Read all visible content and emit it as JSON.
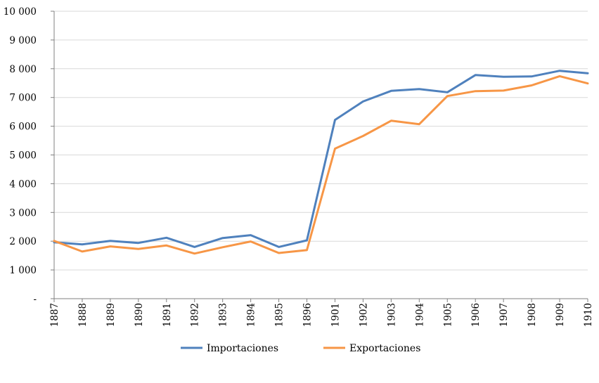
{
  "chart_data": {
    "type": "line",
    "title": "",
    "xlabel": "",
    "ylabel": "",
    "categories": [
      "1887",
      "1888",
      "1889",
      "1890",
      "1891",
      "1892",
      "1893",
      "1894",
      "1895",
      "1896",
      "1901",
      "1902",
      "1903",
      "1904",
      "1905",
      "1906",
      "1907",
      "1908",
      "1909",
      "1910"
    ],
    "ylim": [
      0,
      10000
    ],
    "y_ticks": [
      0,
      1000,
      2000,
      3000,
      4000,
      5000,
      6000,
      7000,
      8000,
      9000,
      10000
    ],
    "y_tick_labels": [
      "-",
      "1 000",
      "2 000",
      "3 000",
      "4 000",
      "5 000",
      "6 000",
      "7 000",
      "8 000",
      "9 000",
      "10 000"
    ],
    "grid": true,
    "legend_position": "bottom",
    "series": [
      {
        "name": "Importaciones",
        "color": "#4F81BD",
        "values": [
          1960,
          1890,
          2010,
          1940,
          2120,
          1800,
          2110,
          2210,
          1800,
          2030,
          6220,
          6860,
          7230,
          7290,
          7180,
          7780,
          7720,
          7730,
          7930,
          7840
        ]
      },
      {
        "name": "Exportaciones",
        "color": "#F79646",
        "values": [
          2010,
          1640,
          1820,
          1730,
          1850,
          1570,
          1790,
          1990,
          1590,
          1690,
          5220,
          5660,
          6190,
          6070,
          7050,
          7220,
          7240,
          7420,
          7740,
          7490
        ]
      }
    ]
  }
}
